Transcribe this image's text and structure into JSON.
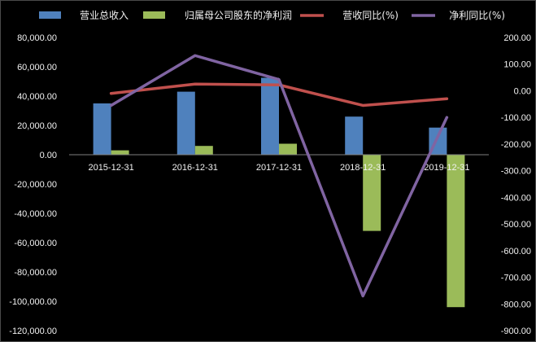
{
  "chart_data": {
    "type": "bar",
    "categories": [
      "2015-12-31",
      "2016-12-31",
      "2017-12-31",
      "2018-12-31",
      "2019-12-31"
    ],
    "series": [
      {
        "name": "营业总收入",
        "kind": "bar",
        "axis": "left",
        "color": "#4f81bd",
        "values": [
          35000,
          43000,
          52500,
          26000,
          18500
        ]
      },
      {
        "name": "归属母公司股东的净利润",
        "kind": "bar",
        "axis": "left",
        "color": "#9bbb59",
        "values": [
          3000,
          6000,
          7500,
          -52000,
          -104000
        ]
      },
      {
        "name": "营收同比(%)",
        "kind": "line",
        "axis": "right",
        "color": "#c0504d",
        "values": [
          -10,
          25,
          22,
          -55,
          -30
        ]
      },
      {
        "name": "净利同比(%)",
        "kind": "line",
        "axis": "right",
        "color": "#8064a2",
        "values": [
          -55,
          132,
          42,
          -770,
          -100
        ]
      }
    ],
    "y_left": {
      "ylim": [
        -120000,
        80000
      ],
      "ticks": [
        "80,000.00",
        "60,000.00",
        "40,000.00",
        "20,000.00",
        "0.00",
        "-20,000.00",
        "-40,000.00",
        "-60,000.00",
        "-80,000.00",
        "-100,000.00",
        "-120,000.00"
      ]
    },
    "y_right": {
      "ylim": [
        -900,
        200
      ],
      "ticks": [
        "200.00",
        "100.00",
        "0.00",
        "-100.00",
        "-200.00",
        "-300.00",
        "-400.00",
        "-500.00",
        "-600.00",
        "-700.00",
        "-800.00",
        "-900.00"
      ]
    },
    "legend_position": "top",
    "grid": false,
    "background": "#000000"
  }
}
